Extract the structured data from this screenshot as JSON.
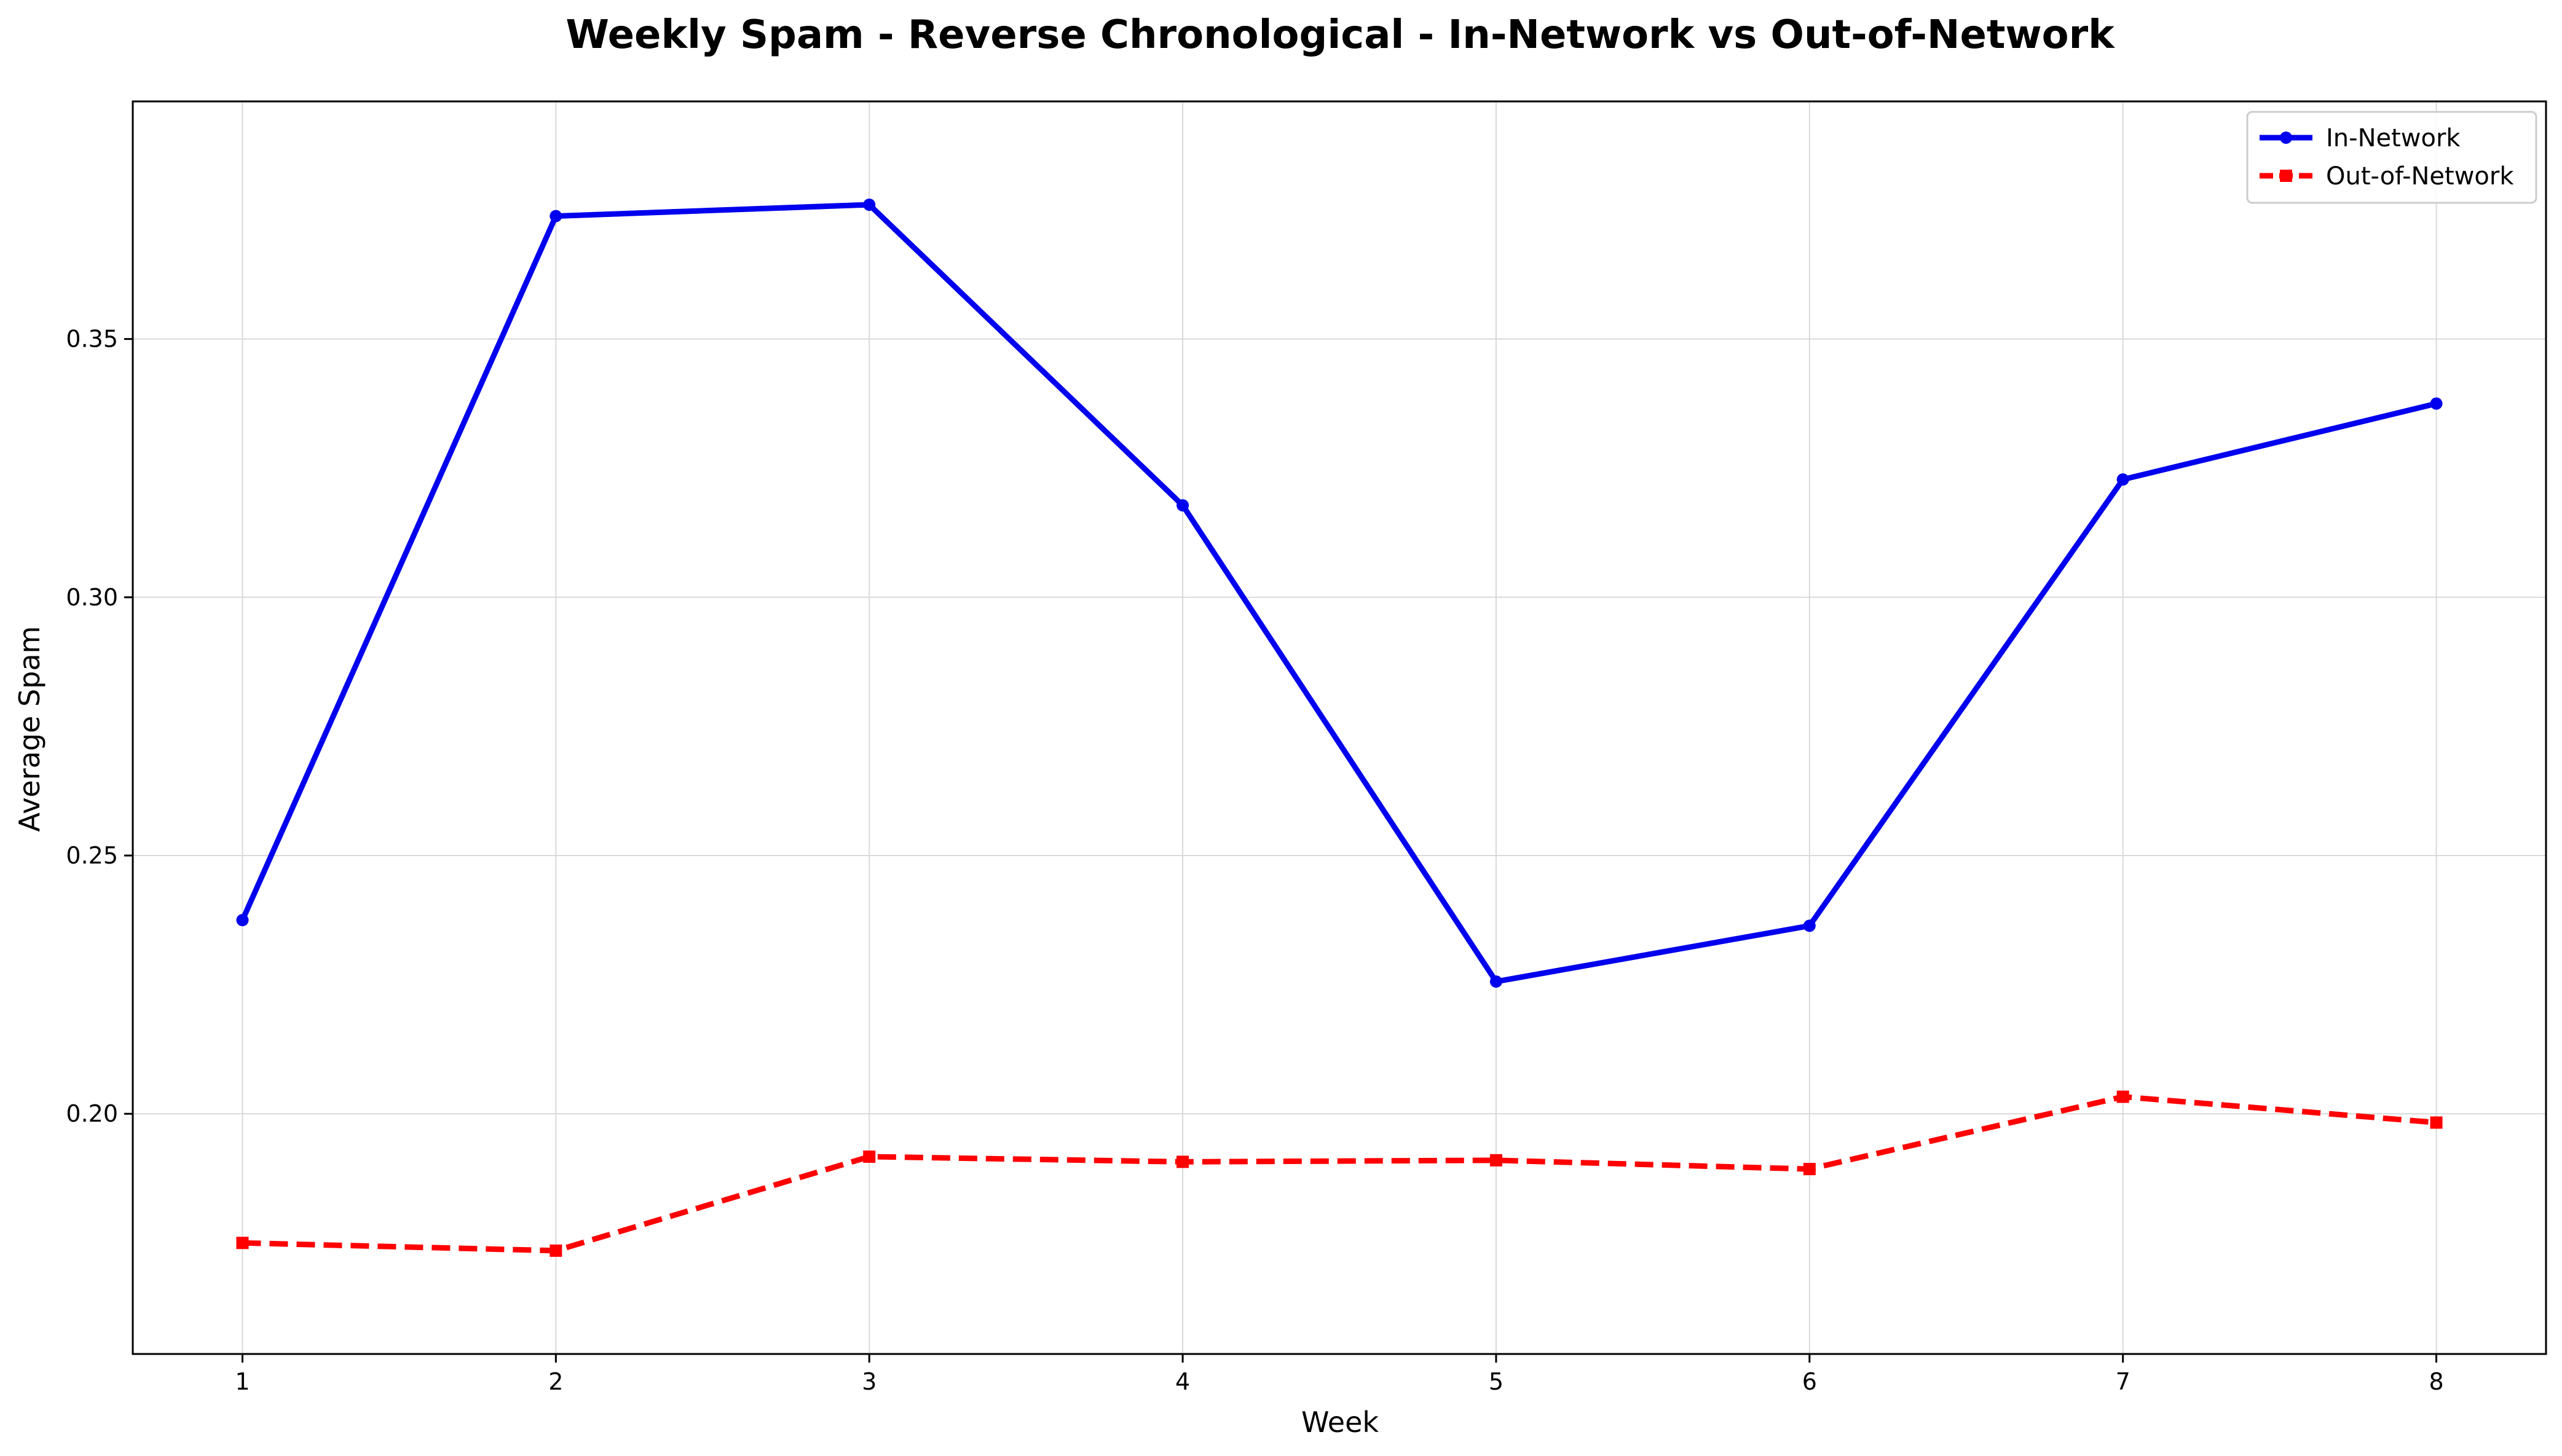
{
  "chart_data": {
    "type": "line",
    "title": "Weekly Spam - Reverse Chronological - In-Network vs Out-of-Network",
    "xlabel": "Week",
    "ylabel": "Average Spam",
    "x": [
      1,
      2,
      3,
      4,
      5,
      6,
      7,
      8
    ],
    "xlim": [
      0.65,
      8.35
    ],
    "ylim": [
      0.1535,
      0.396
    ],
    "yticks": [
      0.2,
      0.25,
      0.3,
      0.35
    ],
    "ytick_labels": [
      "0.20",
      "0.25",
      "0.30",
      "0.35"
    ],
    "xtick_labels": [
      "1",
      "2",
      "3",
      "4",
      "5",
      "6",
      "7",
      "8"
    ],
    "grid": true,
    "legend_position": "top-right",
    "series": [
      {
        "name": "In-Network",
        "color": "#0000ee",
        "line_style": "solid",
        "marker": "circle",
        "values": [
          0.2375,
          0.3738,
          0.376,
          0.3178,
          0.2256,
          0.2364,
          0.3228,
          0.3375
        ]
      },
      {
        "name": "Out-of-Network",
        "color": "#ff0000",
        "line_style": "dashed",
        "marker": "square",
        "values": [
          0.175,
          0.1735,
          0.1917,
          0.1907,
          0.191,
          0.1893,
          0.2033,
          0.1983
        ]
      }
    ]
  }
}
